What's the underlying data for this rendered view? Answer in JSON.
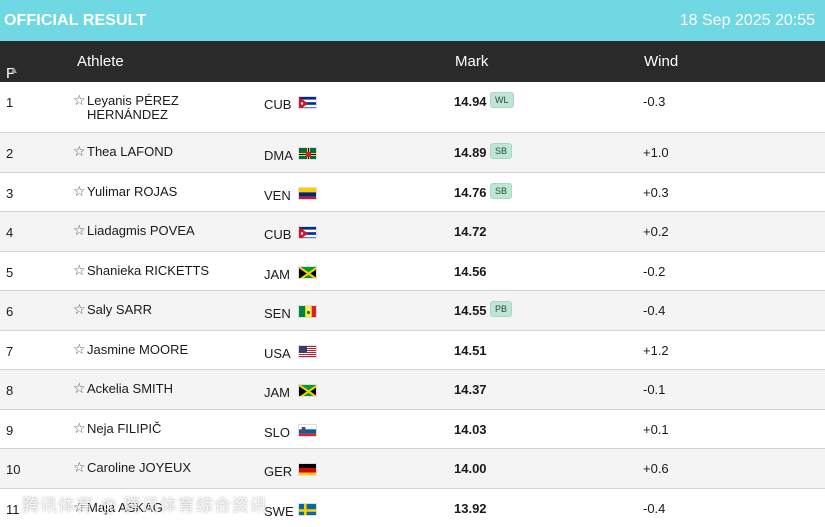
{
  "header": {
    "title": "OFFICIAL RESULT",
    "datetime": "18 Sep 2025 20:55"
  },
  "columns": {
    "position": "P",
    "athlete": "Athlete",
    "mark": "Mark",
    "wind": "Wind"
  },
  "sort_icon": "triangle-up-icon",
  "colors": {
    "topbar": "#6fd8e3",
    "header_bg": "#2a2a2a",
    "badge_bg": "#bfe6d5"
  },
  "results": [
    {
      "pos": "1",
      "name": "Leyanis PÉREZ HERNÁNDEZ",
      "country": "CUB",
      "mark": "14.94",
      "badge": "WL",
      "wind": "-0.3"
    },
    {
      "pos": "2",
      "name": "Thea LAFOND",
      "country": "DMA",
      "mark": "14.89",
      "badge": "SB",
      "wind": "+1.0"
    },
    {
      "pos": "3",
      "name": "Yulimar ROJAS",
      "country": "VEN",
      "mark": "14.76",
      "badge": "SB",
      "wind": "+0.3"
    },
    {
      "pos": "4",
      "name": "Liadagmis POVEA",
      "country": "CUB",
      "mark": "14.72",
      "badge": "",
      "wind": "+0.2"
    },
    {
      "pos": "5",
      "name": "Shanieka RICKETTS",
      "country": "JAM",
      "mark": "14.56",
      "badge": "",
      "wind": "-0.2"
    },
    {
      "pos": "6",
      "name": "Saly SARR",
      "country": "SEN",
      "mark": "14.55",
      "badge": "PB",
      "wind": "-0.4"
    },
    {
      "pos": "7",
      "name": "Jasmine MOORE",
      "country": "USA",
      "mark": "14.51",
      "badge": "",
      "wind": "+1.2"
    },
    {
      "pos": "8",
      "name": "Ackelia SMITH",
      "country": "JAM",
      "mark": "14.37",
      "badge": "",
      "wind": "-0.1"
    },
    {
      "pos": "9",
      "name": "Neja FILIPIČ",
      "country": "SLO",
      "mark": "14.03",
      "badge": "",
      "wind": "+0.1"
    },
    {
      "pos": "10",
      "name": "Caroline JOYEUX",
      "country": "GER",
      "mark": "14.00",
      "badge": "",
      "wind": "+0.6"
    },
    {
      "pos": "11",
      "name": "Maja ASKAG",
      "country": "SWE",
      "mark": "13.92",
      "badge": "",
      "wind": "-0.4"
    }
  ],
  "watermark": "腾讯体育 @ 腾讯体育综合资讯"
}
